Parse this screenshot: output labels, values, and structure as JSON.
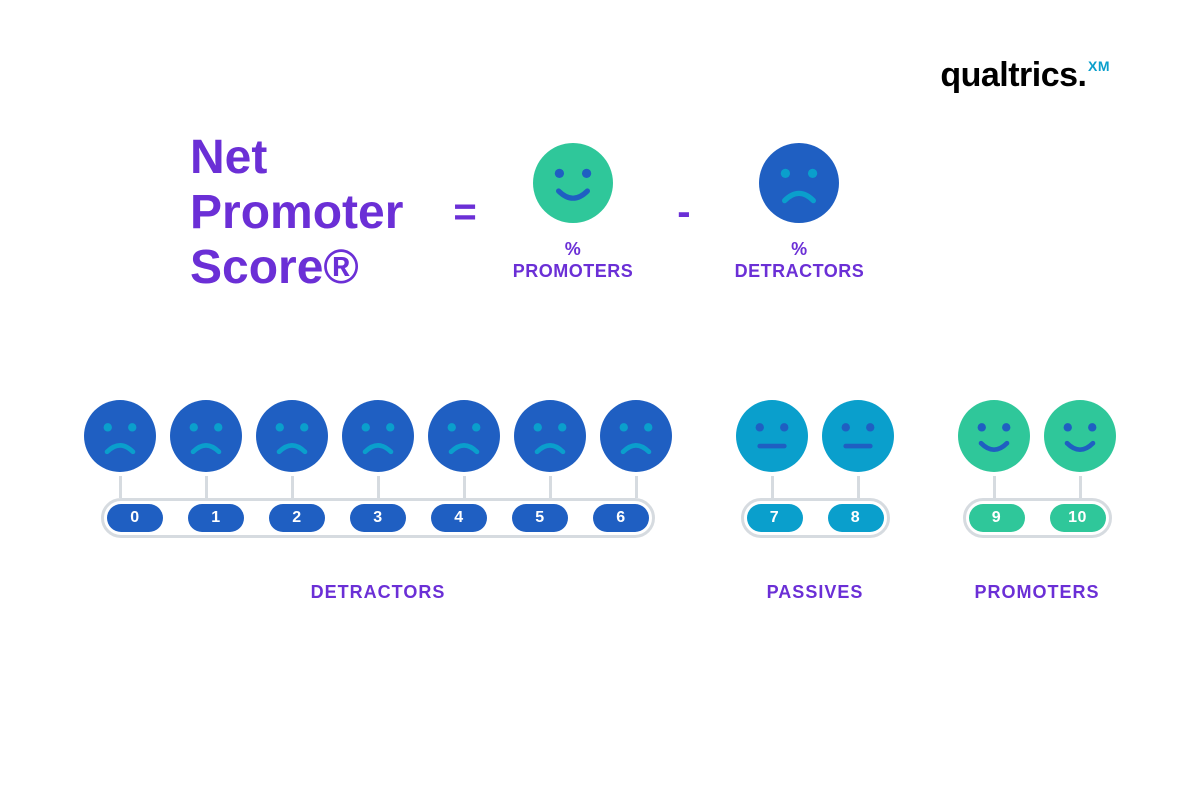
{
  "logo": {
    "main": "qualtrics",
    "dot": ".",
    "xm": "XM"
  },
  "title": "Net\nPromoter\nScore®",
  "operators": {
    "equals": "=",
    "minus": "-"
  },
  "formula_terms": {
    "promoters": {
      "pct": "%",
      "label": "PROMOTERS",
      "face": "happy",
      "fill": "#2fc79a",
      "feature": "#1f5fc2"
    },
    "detractors": {
      "pct": "%",
      "label": "DETRACTORS",
      "face": "sad",
      "fill": "#1f5fc2",
      "feature": "#0a9fcc"
    }
  },
  "colors": {
    "purple": "#6b2fd6",
    "detractor_fill": "#1f5fc2",
    "detractor_feature": "#0a9fcc",
    "passive_fill": "#0a9fcc",
    "passive_feature": "#1f5fc2",
    "promoter_fill": "#2fc79a",
    "promoter_feature": "#1f5fc2",
    "connector": "#d6dbe0",
    "background": "#ffffff"
  },
  "face_svg_size": 72,
  "formula_face_size": 80,
  "scale": {
    "groups": [
      {
        "key": "detractors",
        "label": "DETRACTORS",
        "face": "sad",
        "fill": "#1f5fc2",
        "feature": "#0a9fcc",
        "pill_color": "#1f5fc2",
        "items": [
          "0",
          "1",
          "2",
          "3",
          "4",
          "5",
          "6"
        ]
      },
      {
        "key": "passives",
        "label": "PASSIVES",
        "face": "neutral",
        "fill": "#0a9fcc",
        "feature": "#1f5fc2",
        "pill_color": "#0a9fcc",
        "items": [
          "7",
          "8"
        ]
      },
      {
        "key": "promoters",
        "label": "PROMOTERS",
        "face": "happy",
        "fill": "#2fc79a",
        "feature": "#1f5fc2",
        "pill_color": "#2fc79a",
        "items": [
          "9",
          "10"
        ]
      }
    ]
  }
}
